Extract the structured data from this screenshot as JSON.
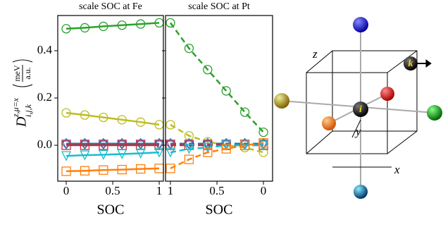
{
  "chart_data": [
    {
      "type": "line",
      "title": "scale SOC at Fe",
      "xlabel": "SOC",
      "linestyle": "solid",
      "ylabel": {
        "symbol": "D",
        "superscript": "z,μ=x",
        "subscript": "i,j,k",
        "unit_numerator": "meV",
        "unit_denominator": "a.u."
      },
      "x": [
        0,
        0.2,
        0.4,
        0.6,
        0.8,
        1
      ],
      "xlim": [
        -0.091,
        1.045
      ],
      "xticks": [
        0,
        0.5,
        1
      ],
      "ylim": [
        -0.152,
        0.549
      ],
      "yticks": [
        {
          "value": 0,
          "label": "0.0"
        },
        0.2,
        0.4
      ],
      "series": [
        {
          "color": "#2ca02c",
          "marker": "circle",
          "values": [
            0.493,
            0.497,
            0.503,
            0.508,
            0.513,
            0.518
          ]
        },
        {
          "color": "#bcbd22",
          "marker": "circle",
          "values": [
            0.137,
            0.128,
            0.118,
            0.108,
            0.098,
            0.087
          ]
        },
        {
          "color": "#9467bd",
          "marker": "triangle-down",
          "values": [
            0.004,
            0.004,
            0.004,
            0.004,
            0.004,
            0.004
          ]
        },
        {
          "color": "#1f77b4",
          "marker": "diamond",
          "values": [
            0.007,
            0.007,
            0.007,
            0.007,
            0.007,
            0.007
          ]
        },
        {
          "color": "#d62728",
          "marker": "square",
          "values": [
            0,
            0,
            0,
            0,
            0,
            0
          ]
        },
        {
          "color": "#17becf",
          "marker": "triangle-down",
          "values": [
            -0.045,
            -0.042,
            -0.04,
            -0.037,
            -0.034,
            -0.03
          ]
        },
        {
          "color": "#ff7f0e",
          "marker": "square",
          "values": [
            -0.11,
            -0.108,
            -0.105,
            -0.103,
            -0.1,
            -0.098
          ]
        }
      ]
    },
    {
      "type": "line",
      "title": "scale SOC at Pt",
      "xlabel": "SOC",
      "linestyle": "dashed",
      "x": [
        1,
        0.8,
        0.6,
        0.4,
        0.2,
        0
      ],
      "xlim": [
        1.053,
        -0.098
      ],
      "xticks": [
        1,
        0.5,
        0
      ],
      "ylim": [
        -0.152,
        0.549
      ],
      "series": [
        {
          "color": "#2ca02c",
          "marker": "circle",
          "values": [
            0.518,
            0.41,
            0.32,
            0.23,
            0.14,
            0.055
          ]
        },
        {
          "color": "#bcbd22",
          "marker": "circle",
          "values": [
            0.087,
            0.04,
            0.015,
            0.0,
            -0.01,
            -0.03
          ]
        },
        {
          "color": "#9467bd",
          "marker": "triangle-down",
          "values": [
            0.004,
            0.004,
            0.004,
            0.004,
            0.004,
            0.004
          ]
        },
        {
          "color": "#1f77b4",
          "marker": "diamond",
          "values": [
            0.007,
            0.007,
            0.007,
            0.007,
            0.007,
            0.007
          ]
        },
        {
          "color": "#d62728",
          "marker": "square",
          "values": [
            0,
            0,
            0,
            0,
            0,
            0
          ]
        },
        {
          "color": "#17becf",
          "marker": "triangle-down",
          "values": [
            -0.03,
            -0.015,
            -0.01,
            0,
            0,
            0
          ]
        },
        {
          "color": "#ff7f0e",
          "marker": "square",
          "values": [
            -0.098,
            -0.06,
            -0.03,
            -0.015,
            0,
            0.01
          ]
        }
      ]
    }
  ],
  "diagram": {
    "axis_labels": {
      "x": "x",
      "y": "y",
      "z": "z"
    },
    "atom_labels": {
      "i": "i",
      "k": "k"
    }
  }
}
